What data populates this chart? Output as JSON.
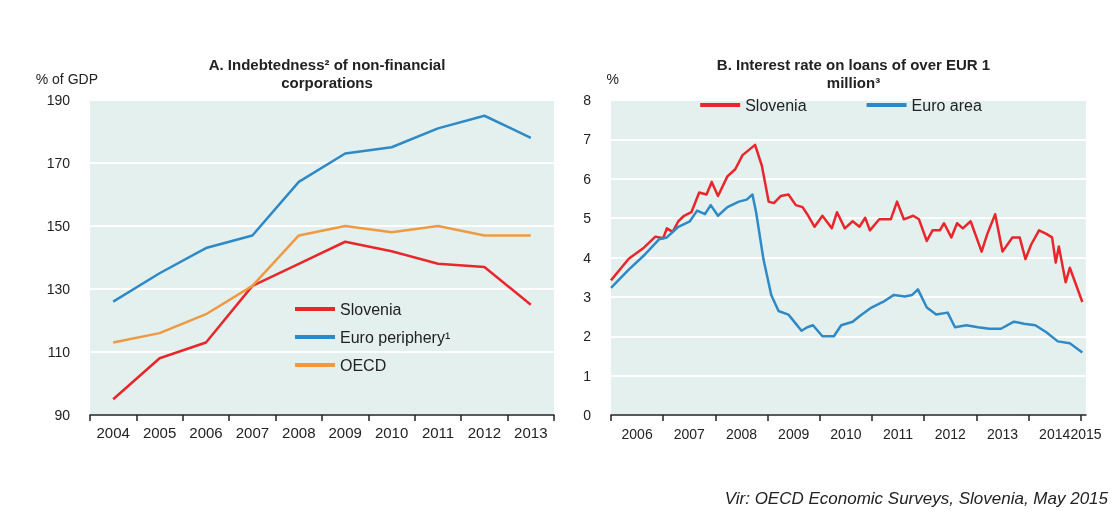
{
  "chart_data": [
    {
      "type": "line",
      "title": "A. Indebtedness² of non-financial\ncorporations",
      "ylabel": "% of GDP",
      "categories": [
        "2004",
        "2005",
        "2006",
        "2007",
        "2008",
        "2009",
        "2010",
        "2011",
        "2012",
        "2013"
      ],
      "series": [
        {
          "name": "Slovenia",
          "color": "#e8262b",
          "values": [
            95,
            108,
            113,
            131,
            138,
            145,
            142,
            138,
            137,
            125
          ]
        },
        {
          "name": "Euro periphery¹",
          "color": "#2e8ac6",
          "values": [
            126,
            135,
            143,
            147,
            164,
            173,
            175,
            181,
            185,
            178
          ]
        },
        {
          "name": "OECD",
          "color": "#ef9a43",
          "values": [
            113,
            116,
            122,
            131,
            147,
            150,
            148,
            150,
            147,
            147
          ]
        }
      ],
      "ylim": [
        90,
        190
      ],
      "yticks": [
        90,
        110,
        130,
        150,
        170,
        190
      ],
      "grid": "y",
      "legend": "bottom right",
      "marker": "none",
      "line_style": "solid"
    },
    {
      "type": "line",
      "title": "B. Interest rate on loans of over EUR 1\nmillion³",
      "ylabel": "%",
      "annotations": [
        "Vir: OECD Economic Surveys, Slovenia, May 2015"
      ],
      "series": [
        {
          "name": "Slovenia",
          "color": "#e8262b",
          "x": [
            2006.0,
            2006.34,
            2006.63,
            2006.85,
            2007.0,
            2007.07,
            2007.18,
            2007.29,
            2007.4,
            2007.54,
            2007.69,
            2007.83,
            2007.93,
            2008.05,
            2008.23,
            2008.38,
            2008.52,
            2008.65,
            2008.76,
            2008.89,
            2009.02,
            2009.12,
            2009.25,
            2009.4,
            2009.54,
            2009.67,
            2009.76,
            2009.9,
            2010.05,
            2010.23,
            2010.33,
            2010.48,
            2010.63,
            2010.76,
            2010.87,
            2010.96,
            2011.14,
            2011.36,
            2011.48,
            2011.61,
            2011.79,
            2011.9,
            2012.05,
            2012.16,
            2012.3,
            2012.38,
            2012.52,
            2012.63,
            2012.74,
            2012.89,
            2013.1,
            2013.21,
            2013.36,
            2013.5,
            2013.69,
            2013.83,
            2013.94,
            2014.05,
            2014.2,
            2014.34,
            2014.45,
            2014.52,
            2014.58,
            2014.71,
            2014.79,
            2015.03
          ],
          "values": [
            3.42,
            3.97,
            4.25,
            4.53,
            4.49,
            4.74,
            4.65,
            4.92,
            5.06,
            5.15,
            5.65,
            5.6,
            5.92,
            5.56,
            6.06,
            6.24,
            6.6,
            6.74,
            6.86,
            6.33,
            5.42,
            5.38,
            5.56,
            5.6,
            5.33,
            5.28,
            5.1,
            4.78,
            5.06,
            4.74,
            5.15,
            4.74,
            4.92,
            4.78,
            5.01,
            4.69,
            4.97,
            4.97,
            5.42,
            4.97,
            5.06,
            4.97,
            4.42,
            4.69,
            4.69,
            4.87,
            4.51,
            4.87,
            4.74,
            4.92,
            4.15,
            4.6,
            5.1,
            4.15,
            4.51,
            4.51,
            3.96,
            4.33,
            4.69,
            4.6,
            4.51,
            3.87,
            4.28,
            3.37,
            3.74,
            2.87
          ]
        },
        {
          "name": "Euro area",
          "color": "#2e8ac6",
          "x": [
            2006.0,
            2006.34,
            2006.63,
            2006.92,
            2007.07,
            2007.29,
            2007.51,
            2007.65,
            2007.8,
            2007.91,
            2008.05,
            2008.23,
            2008.45,
            2008.6,
            2008.71,
            2008.78,
            2008.92,
            2009.07,
            2009.21,
            2009.4,
            2009.54,
            2009.65,
            2009.76,
            2009.87,
            2010.05,
            2010.27,
            2010.41,
            2010.63,
            2010.76,
            2010.99,
            2011.21,
            2011.42,
            2011.63,
            2011.77,
            2011.88,
            2012.05,
            2012.23,
            2012.45,
            2012.59,
            2012.81,
            2013.03,
            2013.25,
            2013.47,
            2013.72,
            2013.91,
            2014.13,
            2014.34,
            2014.56,
            2014.79,
            2015.03
          ],
          "values": [
            3.23,
            3.69,
            4.05,
            4.46,
            4.51,
            4.78,
            4.92,
            5.19,
            5.1,
            5.33,
            5.06,
            5.28,
            5.42,
            5.47,
            5.6,
            5.15,
            3.96,
            3.05,
            2.64,
            2.55,
            2.32,
            2.14,
            2.23,
            2.28,
            2.0,
            2.0,
            2.28,
            2.37,
            2.51,
            2.73,
            2.87,
            3.05,
            3.01,
            3.05,
            3.19,
            2.73,
            2.55,
            2.6,
            2.23,
            2.28,
            2.23,
            2.19,
            2.19,
            2.37,
            2.32,
            2.28,
            2.1,
            1.87,
            1.82,
            1.59
          ]
        }
      ],
      "xlim": [
        2006,
        2015.1
      ],
      "xticks": [
        {
          "value": 2006,
          "label": null
        },
        {
          "value": 2006.5,
          "label": "2006"
        },
        {
          "value": 2007,
          "label": null
        },
        {
          "value": 2007.5,
          "label": "2007"
        },
        {
          "value": 2008,
          "label": null
        },
        {
          "value": 2008.5,
          "label": "2008"
        },
        {
          "value": 2009,
          "label": null
        },
        {
          "value": 2009.5,
          "label": "2009"
        },
        {
          "value": 2010,
          "label": null
        },
        {
          "value": 2010.5,
          "label": "2010"
        },
        {
          "value": 2011,
          "label": null
        },
        {
          "value": 2011.5,
          "label": "2011"
        },
        {
          "value": 2012,
          "label": null
        },
        {
          "value": 2012.5,
          "label": "2012"
        },
        {
          "value": 2013,
          "label": null
        },
        {
          "value": 2013.5,
          "label": "2013"
        },
        {
          "value": 2014,
          "label": null
        },
        {
          "value": 2014.5,
          "label": "2014"
        },
        {
          "value": 2015,
          "label": null
        },
        {
          "value": 2015.1,
          "label": "2015"
        }
      ],
      "ylim": [
        0,
        8
      ],
      "yticks": [
        0,
        1,
        2,
        3,
        4,
        5,
        6,
        7,
        8
      ],
      "grid": "y",
      "legend": "top",
      "marker": "none",
      "line_style": "solid"
    }
  ]
}
